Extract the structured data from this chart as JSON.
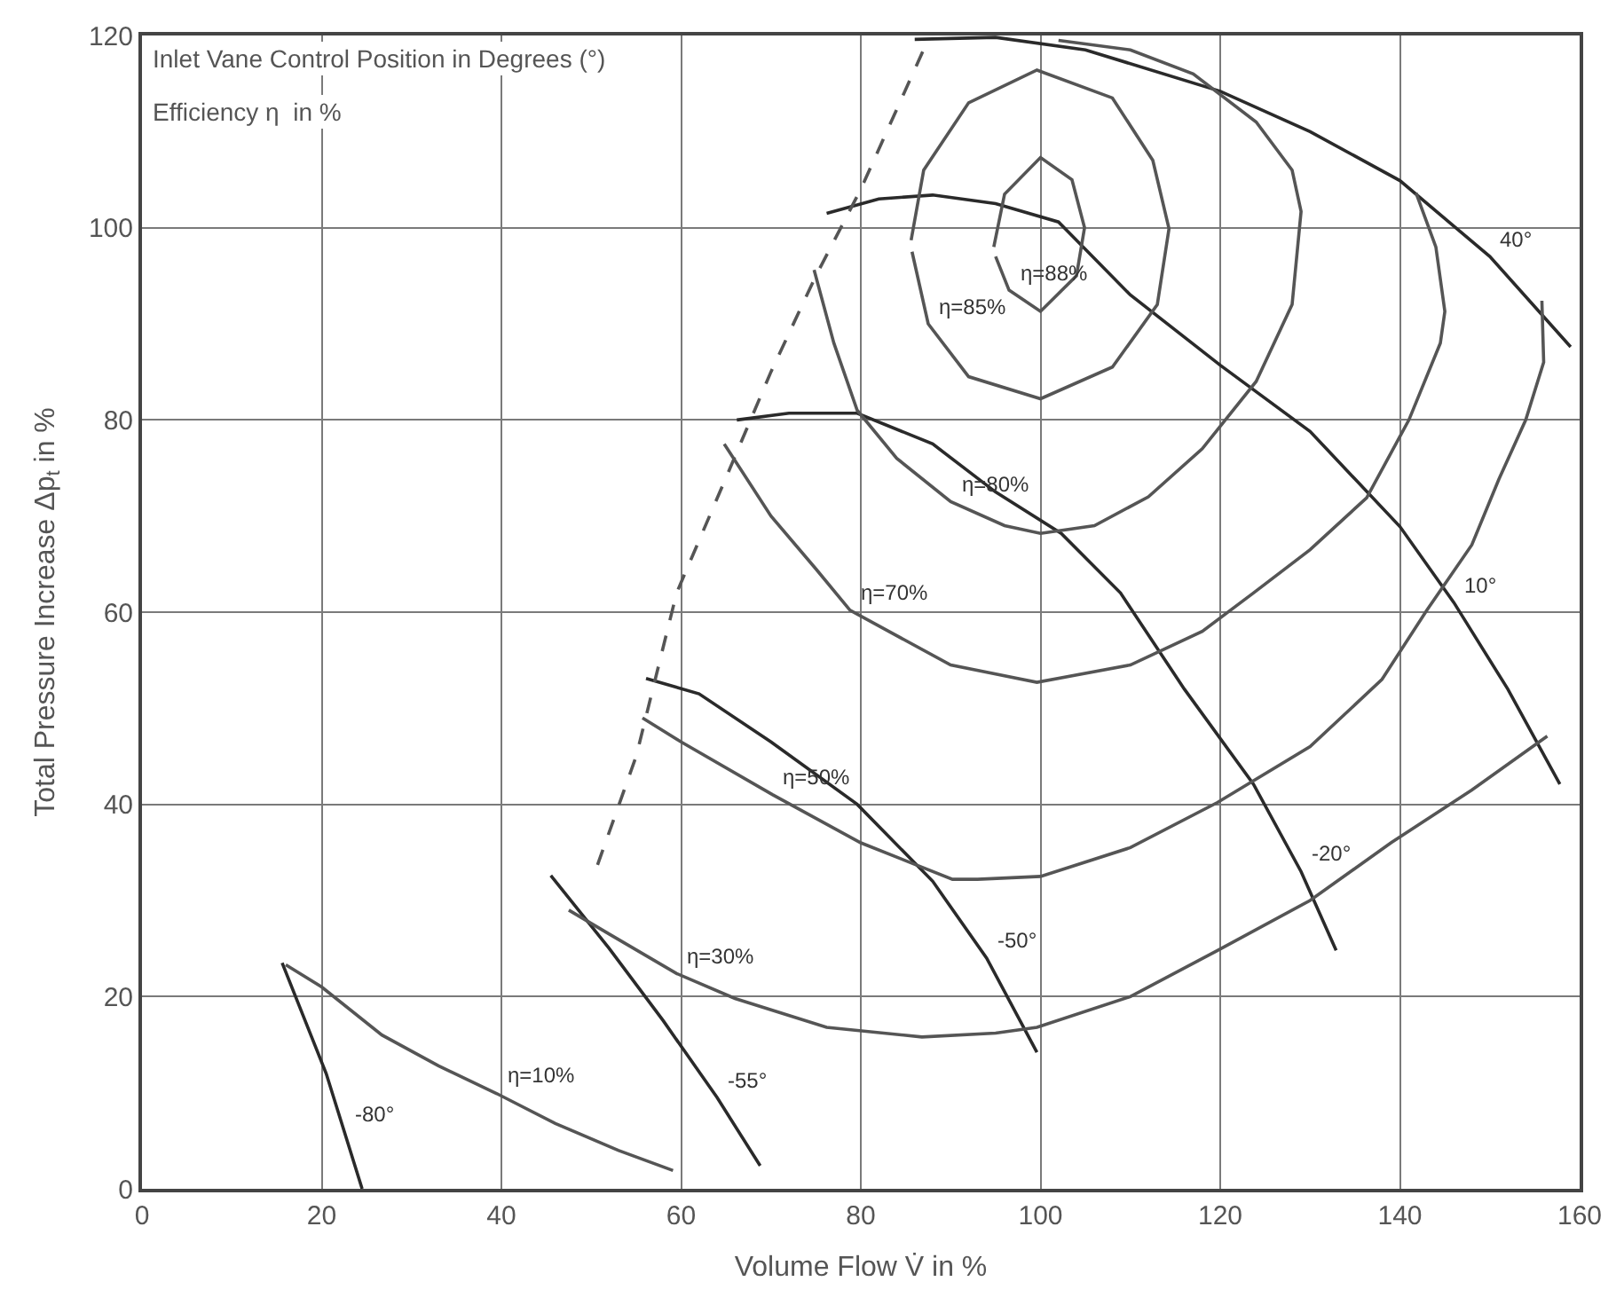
{
  "chart_data": {
    "type": "line",
    "xlabel": "Volume Flow V̇ in %",
    "ylabel": "Total Pressure Increase Δp$_{t}$ in %",
    "xlim": [
      0,
      160
    ],
    "ylim": [
      0,
      120
    ],
    "xticks": [
      0,
      20,
      40,
      60,
      80,
      100,
      120,
      140,
      160
    ],
    "yticks": [
      0,
      20,
      40,
      60,
      80,
      100,
      120
    ],
    "grid": true,
    "marker": "none",
    "series": [
      {
        "color": "#2a2a2a",
        "x": [
          86,
          95,
          105,
          120,
          130,
          140,
          150,
          159
        ],
        "values": [
          119.6,
          119.8,
          118.5,
          114.2,
          110,
          104.9,
          97,
          87.6
        ]
      },
      {
        "color": "#2a2a2a",
        "x": [
          76.2,
          82,
          88,
          95,
          102,
          110,
          120,
          130,
          140,
          146,
          152,
          157.8
        ],
        "values": [
          101.5,
          103,
          103.4,
          102.5,
          100.6,
          93,
          85.7,
          78.8,
          68.9,
          61,
          52,
          42.1
        ]
      },
      {
        "color": "#2a2a2a",
        "x": [
          66.2,
          72,
          79.6,
          88,
          95,
          102.3,
          108.9,
          116,
          123.7,
          129,
          132.9
        ],
        "values": [
          80,
          80.7,
          80.7,
          77.5,
          72.5,
          68.2,
          62,
          52,
          42.1,
          33,
          24.8
        ]
      },
      {
        "color": "#2a2a2a",
        "x": [
          56.1,
          62,
          70,
          79.6,
          88,
          94,
          99.6
        ],
        "values": [
          53.1,
          51.5,
          46.5,
          40,
          32,
          24,
          14.2
        ]
      },
      {
        "color": "#2a2a2a",
        "x": [
          45.5,
          52,
          58,
          64,
          68.8
        ],
        "values": [
          32.6,
          25,
          17.5,
          9.5,
          2.4
        ]
      },
      {
        "color": "#2a2a2a",
        "x": [
          15.6,
          20.5,
          22.5,
          24.5
        ],
        "values": [
          23.5,
          12,
          6,
          0
        ]
      },
      {
        "color": "#555555",
        "x": [
          94.8,
          96,
          100,
          103.5,
          104.9,
          104,
          100,
          96.5,
          95
        ],
        "values": [
          98,
          103.5,
          107.3,
          105,
          100,
          95,
          91.3,
          93.5,
          97
        ]
      },
      {
        "color": "#555555",
        "x": [
          85.6,
          87,
          92,
          99.6,
          108,
          112.5,
          114.3,
          113,
          108,
          100,
          92,
          87.5,
          85.7
        ],
        "values": [
          98.7,
          106,
          113,
          116.4,
          113.5,
          107,
          99.9,
          92,
          85.5,
          82.2,
          84.5,
          90,
          97.5
        ]
      },
      {
        "color": "#555555",
        "x": [
          74.8,
          77,
          79.6,
          84,
          90,
          96,
          100,
          106,
          112,
          118,
          124,
          128,
          129,
          128,
          124,
          117,
          110,
          102
        ],
        "values": [
          95.6,
          88,
          81,
          76,
          71.5,
          69,
          68.2,
          69,
          72,
          77,
          84,
          92,
          101.7,
          106,
          111,
          116,
          118.5,
          119.5
        ]
      },
      {
        "color": "#555555",
        "x": [
          64.8,
          70,
          75,
          78.8,
          90,
          99.6,
          110,
          118,
          123.7,
          130,
          136.3,
          141,
          144.5,
          145,
          144,
          141.8
        ],
        "values": [
          77.5,
          70,
          64.5,
          60.2,
          54.5,
          52.7,
          54.5,
          58,
          62,
          66.5,
          71.9,
          80,
          88,
          91.3,
          98,
          103.6
        ]
      },
      {
        "color": "#555555",
        "x": [
          55.7,
          60,
          70.2,
          80,
          90.2,
          93,
          100,
          110,
          119.7,
          130,
          138,
          143,
          148,
          151,
          154,
          156,
          155.8
        ],
        "values": [
          49,
          46.5,
          41,
          36,
          32.2,
          32.2,
          32.5,
          35.5,
          40.2,
          46,
          53,
          60.2,
          67,
          73.8,
          80,
          86,
          92.4
        ]
      },
      {
        "color": "#555555",
        "x": [
          47.5,
          52,
          59.5,
          66,
          76.2,
          86.8,
          95,
          99.6,
          110,
          119.7,
          130,
          139,
          148,
          156.4
        ],
        "values": [
          29,
          26.5,
          22.4,
          19.8,
          16.8,
          15.8,
          16.2,
          16.8,
          20,
          24.8,
          30,
          36,
          41.5,
          47.1
        ]
      },
      {
        "color": "#555555",
        "x": [
          16,
          20,
          26.7,
          33,
          39.5,
          46,
          53,
          59.1
        ],
        "values": [
          23.3,
          21,
          16,
          12.8,
          9.9,
          6.8,
          4,
          1.9
        ]
      },
      {
        "color": "#555555",
        "line_style": "dashed",
        "x": [
          50.7,
          55,
          59.5,
          65,
          70,
          75,
          80,
          87.6
        ],
        "values": [
          33.7,
          45,
          62,
          74,
          85,
          95,
          104,
          119.8
        ]
      }
    ],
    "annotations": [
      "Inlet Vane Control Position in Degrees (°)",
      "Efficiency η  in %",
      {
        "text": "η=88%",
        "x": 96.5,
        "y": 93.5
      },
      {
        "text": "η=85%",
        "x": 87.5,
        "y": 90
      },
      {
        "text": "η=80%",
        "x": 90,
        "y": 71.5
      },
      {
        "text": "η=70%",
        "x": 78.8,
        "y": 60.2
      },
      {
        "text": "η=50%",
        "x": 70.2,
        "y": 41
      },
      {
        "text": "η=30%",
        "x": 59.5,
        "y": 22.4
      },
      {
        "text": "η=10%",
        "x": 39.5,
        "y": 9.9
      },
      {
        "text": "40°",
        "x": 150,
        "y": 97
      },
      {
        "text": "10°",
        "x": 146,
        "y": 61
      },
      {
        "text": "-20°",
        "x": 129,
        "y": 33
      },
      {
        "text": "-50°",
        "x": 94,
        "y": 24
      },
      {
        "text": "-55°",
        "x": 64,
        "y": 9.5
      },
      {
        "text": "-80°",
        "x": 22.5,
        "y": 6
      }
    ]
  }
}
